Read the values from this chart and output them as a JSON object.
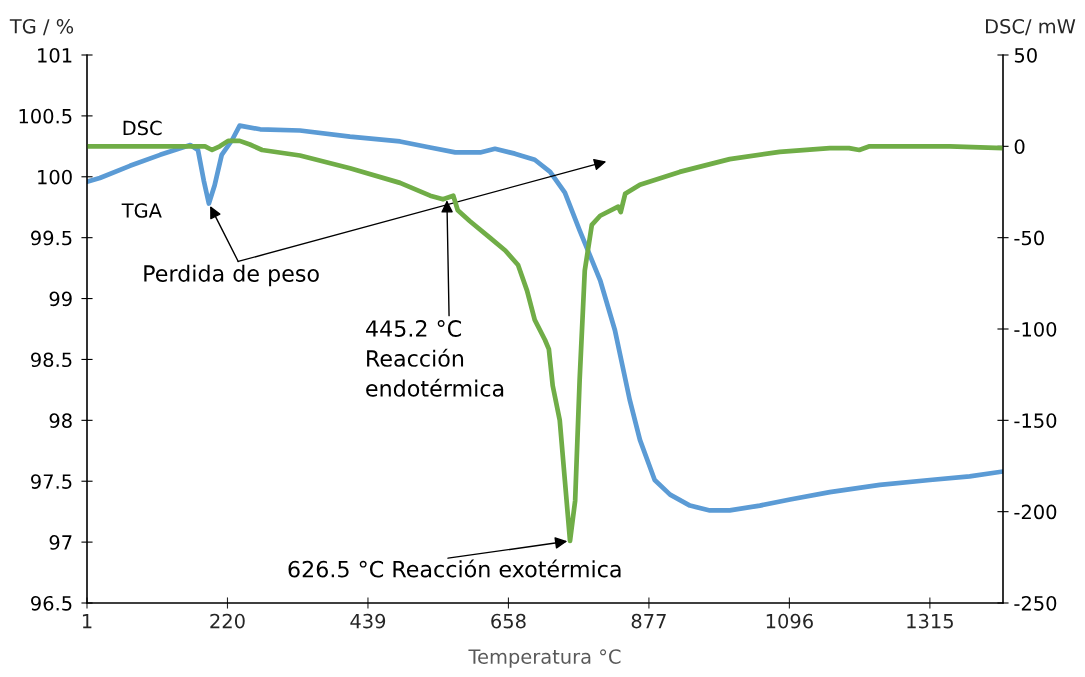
{
  "chart_data": {
    "type": "line",
    "xlabel": "Temperatura °C",
    "ylabel": "TG / %",
    "y2label": "DSC/ mW",
    "xlim": [
      1,
      1429
    ],
    "xticks": [
      1,
      220,
      439,
      658,
      877,
      1096,
      1315
    ],
    "ylim": [
      96.5,
      101
    ],
    "yticks": [
      {
        "value": 96.5,
        "label": "96.5"
      },
      97,
      {
        "value": 97.5,
        "label": "97.5"
      },
      98,
      {
        "value": 98.5,
        "label": "98.5"
      },
      99,
      {
        "value": 99.5,
        "label": "99.5"
      },
      100,
      {
        "value": 100.5,
        "label": "100.5"
      },
      101
    ],
    "y2lim": [
      -250,
      50
    ],
    "y2ticks": [
      -250,
      -200,
      -150,
      -100,
      -50,
      0,
      50
    ],
    "grid": false,
    "legend": false,
    "marker": "none",
    "line_style": "solid",
    "series": [
      {
        "name": "TGA",
        "color": "#5b9bd5",
        "axis": "y",
        "x": [
          1,
          21,
          68,
          115,
          162,
          174,
          183,
          191,
          200,
          211,
          227,
          239,
          271,
          333,
          411,
          489,
          536,
          575,
          614,
          637,
          668,
          699,
          723,
          746,
          769,
          801,
          824,
          847,
          863,
          886,
          910,
          941,
          972,
          1003,
          1050,
          1097,
          1159,
          1237,
          1315,
          1377,
          1429
        ],
        "values": [
          99.96,
          99.99,
          100.09,
          100.18,
          100.26,
          100.22,
          99.97,
          99.78,
          99.93,
          100.18,
          100.3,
          100.42,
          100.39,
          100.38,
          100.33,
          100.29,
          100.24,
          100.2,
          100.2,
          100.23,
          100.19,
          100.14,
          100.04,
          99.87,
          99.56,
          99.15,
          98.74,
          98.17,
          97.84,
          97.51,
          97.39,
          97.3,
          97.26,
          97.26,
          97.3,
          97.35,
          97.41,
          97.47,
          97.51,
          97.54,
          97.58
        ]
      },
      {
        "name": "DSC",
        "color": "#70ad47",
        "axis": "y2",
        "x": [
          1,
          99,
          171,
          185,
          196,
          208,
          221,
          239,
          255,
          274,
          333,
          411,
          489,
          536,
          556,
          572,
          579,
          598,
          629,
          653,
          673,
          687,
          699,
          715,
          721,
          727,
          738,
          746,
          754,
          762,
          769,
          777,
          788,
          801,
          829,
          833,
          840,
          863,
          925,
          1003,
          1081,
          1159,
          1189,
          1205,
          1221,
          1346,
          1429
        ],
        "values": [
          0,
          0,
          0,
          0,
          -2,
          0,
          3,
          3,
          1,
          -2,
          -5,
          -12,
          -20,
          -27,
          -29,
          -27,
          -35,
          -41,
          -50,
          -57,
          -65,
          -79,
          -95,
          -106,
          -111,
          -131,
          -150,
          -183,
          -216,
          -194,
          -128,
          -68,
          -43,
          -38,
          -33,
          -36,
          -26,
          -21,
          -14,
          -7,
          -3,
          -1,
          -1,
          -2,
          0,
          0,
          -1
        ]
      }
    ],
    "annotations": [
      {
        "text": "Perdida de peso",
        "x": 191,
        "y": 99.78
      },
      {
        "text": "445.2 °C\nReacción\nendotérmica",
        "x": 562,
        "y": 99.83
      },
      {
        "text": "626.5 °C Reacción exotérmica",
        "x": 754,
        "y": 97.01
      }
    ]
  }
}
